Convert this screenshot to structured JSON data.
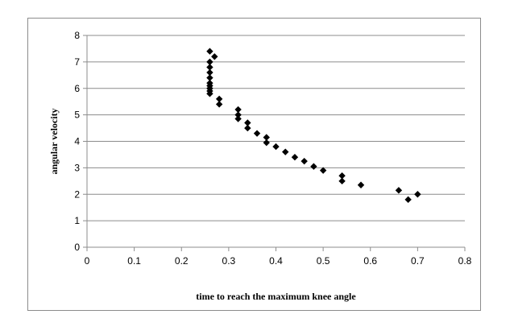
{
  "chart_data": {
    "type": "scatter",
    "title": "",
    "xlabel": "time to reach the maximum knee angle",
    "ylabel": "angular velocity",
    "xlim": [
      0,
      0.8
    ],
    "ylim": [
      0,
      8
    ],
    "xticks": [
      "0",
      "0.1",
      "0.2",
      "0.3",
      "0.4",
      "0.5",
      "0.6",
      "0.7",
      "0.8"
    ],
    "yticks": [
      "0",
      "1",
      "2",
      "3",
      "4",
      "5",
      "6",
      "7",
      "8"
    ],
    "grid": "horizontal",
    "legend": "none",
    "marker": "diamond",
    "marker_color": "#000000",
    "gridline_color": "#8c8c8c",
    "series": [
      {
        "x": [
          0.26,
          0.27,
          0.26,
          0.26,
          0.26,
          0.26,
          0.26,
          0.26,
          0.26,
          0.26,
          0.26,
          0.28,
          0.28,
          0.32,
          0.32,
          0.32,
          0.34,
          0.34,
          0.36,
          0.38,
          0.38,
          0.4,
          0.42,
          0.44,
          0.46,
          0.48,
          0.5,
          0.54,
          0.54,
          0.58,
          0.66,
          0.68,
          0.7
        ],
        "y": [
          7.4,
          7.2,
          7.0,
          6.8,
          6.6,
          6.4,
          6.2,
          6.0,
          5.8,
          5.9,
          6.1,
          5.6,
          5.4,
          5.2,
          5.0,
          4.85,
          4.7,
          4.5,
          4.3,
          4.15,
          3.95,
          3.8,
          3.6,
          3.4,
          3.25,
          3.05,
          2.9,
          2.7,
          2.5,
          2.35,
          2.15,
          1.8,
          2.0
        ]
      }
    ]
  }
}
